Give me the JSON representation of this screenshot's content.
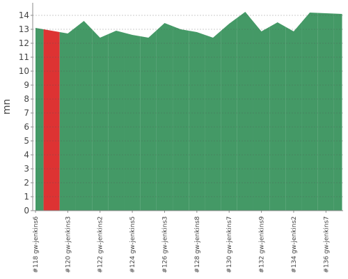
{
  "chart_data": {
    "type": "area",
    "y_label": "mn",
    "categories": [
      "#118 gw-jenkins6",
      null,
      "#120 gw-jenkins3",
      null,
      "#122 gw-jenkins2",
      null,
      "#124 gw-jenkins5",
      null,
      "#126 gw-jenkins3",
      null,
      "#128 gw-jenkins8",
      null,
      "#130 gw-jenkins7",
      null,
      "#132 gw-jenkins9",
      null,
      "#134 gw-jenkins2",
      null,
      "#136 gw-jenkins7",
      null
    ],
    "values": [
      13.1,
      12.9,
      12.7,
      13.6,
      12.4,
      12.9,
      12.6,
      12.4,
      13.45,
      13.0,
      12.8,
      12.4,
      13.4,
      14.25,
      12.85,
      13.5,
      12.85,
      14.2,
      14.15,
      14.1
    ],
    "point_colors": [
      "#449966",
      "#dd3333",
      "#449966",
      "#449966",
      "#449966",
      "#449966",
      "#449966",
      "#449966",
      "#449966",
      "#449966",
      "#449966",
      "#449966",
      "#449966",
      "#449966",
      "#449966",
      "#449966",
      "#449966",
      "#449966",
      "#449966",
      "#449966"
    ],
    "ylim": [
      0,
      14.9
    ],
    "yticks": [
      0,
      1,
      2,
      3,
      4,
      5,
      6,
      7,
      8,
      9,
      10,
      11,
      12,
      13,
      14
    ],
    "grid": true
  }
}
